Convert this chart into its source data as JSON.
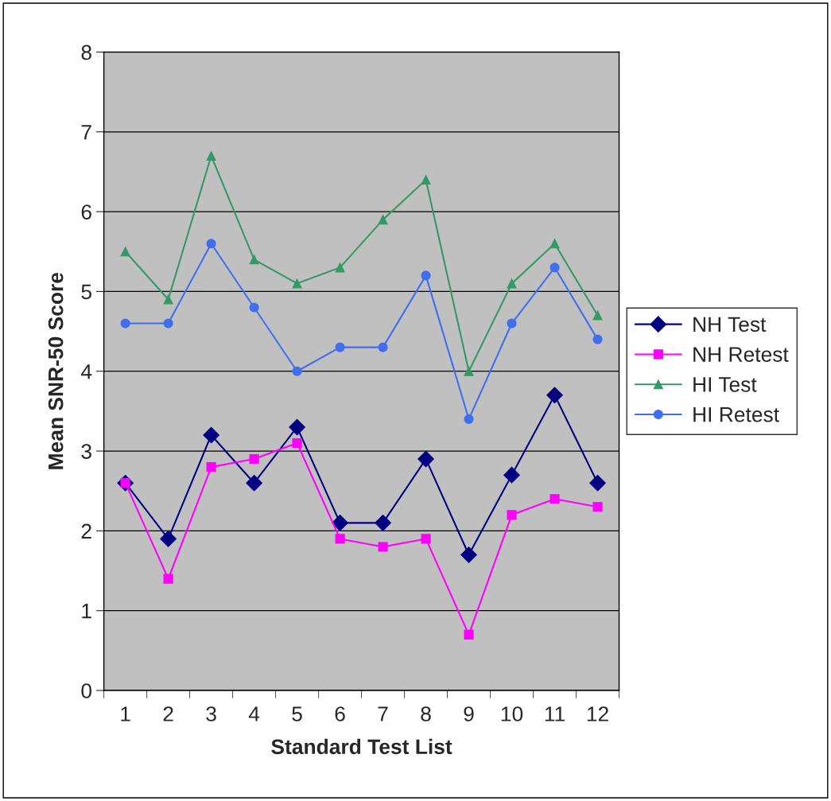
{
  "chart_data": {
    "type": "line",
    "xlabel": "Standard Test List",
    "ylabel": "Mean SNR-50 Score",
    "categories": [
      "1",
      "2",
      "3",
      "4",
      "5",
      "6",
      "7",
      "8",
      "9",
      "10",
      "11",
      "12"
    ],
    "series": [
      {
        "name": "NH Test",
        "color": "#000080",
        "marker": "diamond",
        "values": [
          2.6,
          1.9,
          3.2,
          2.6,
          3.3,
          2.1,
          2.1,
          2.9,
          1.7,
          2.7,
          3.7,
          2.6
        ]
      },
      {
        "name": "NH Retest",
        "color": "#ff00ff",
        "marker": "square",
        "values": [
          2.6,
          1.4,
          2.8,
          2.9,
          3.1,
          1.9,
          1.8,
          1.9,
          0.7,
          2.2,
          2.4,
          2.3
        ]
      },
      {
        "name": "HI Test",
        "color": "#339966",
        "marker": "triangle",
        "values": [
          5.5,
          4.9,
          6.7,
          5.4,
          5.1,
          5.3,
          5.9,
          6.4,
          4.0,
          5.1,
          5.6,
          4.7
        ]
      },
      {
        "name": "HI Retest",
        "color": "#3f6fef",
        "marker": "circle",
        "values": [
          4.6,
          4.6,
          5.6,
          4.8,
          4.0,
          4.3,
          4.3,
          5.2,
          3.4,
          4.6,
          5.3,
          4.4
        ]
      }
    ],
    "ylim": [
      0,
      8
    ],
    "yticks": [
      0,
      1,
      2,
      3,
      4,
      5,
      6,
      7,
      8
    ],
    "grid": "y",
    "legend": "right",
    "line_style": "solid"
  }
}
